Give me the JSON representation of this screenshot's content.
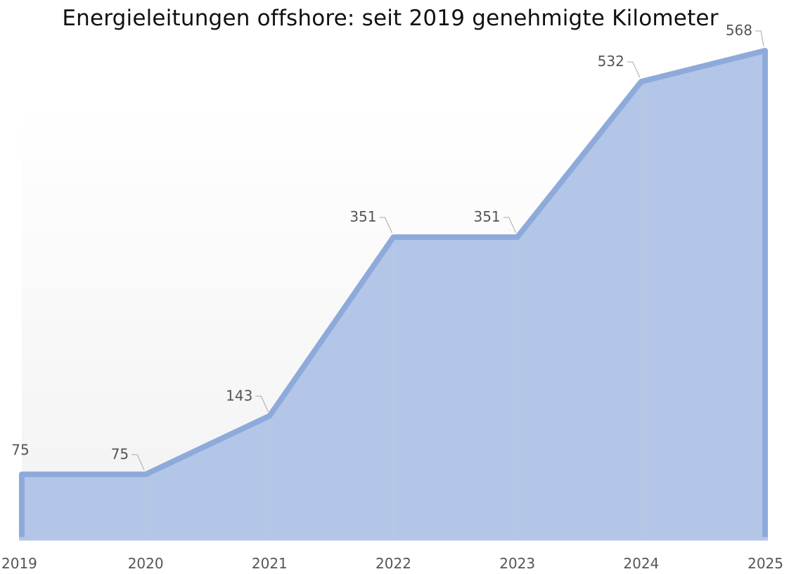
{
  "chart_data": {
    "type": "area",
    "title": "Energieleitungen offshore: seit 2019 genehmigte Kilometer",
    "xlabel": "",
    "ylabel": "",
    "x": [
      "2019",
      "2020",
      "2021",
      "2022",
      "2023",
      "2024",
      "2025"
    ],
    "series": [
      {
        "values": [
          75,
          75,
          143,
          351,
          351,
          532,
          568
        ]
      }
    ],
    "data_labels": [
      "75",
      "75",
      "143",
      "351",
      "351",
      "532",
      "568"
    ],
    "ylim": [
      0,
      568
    ],
    "grid": false,
    "legend": "none",
    "colors": {
      "fill": "#b4c6e7",
      "line": "#8eaadb",
      "axis": "#b4c6e7",
      "divider": "#c8c8c8",
      "background_gradient_top": "#ffffff",
      "background_gradient_bottom": "#f2f2f2"
    }
  }
}
